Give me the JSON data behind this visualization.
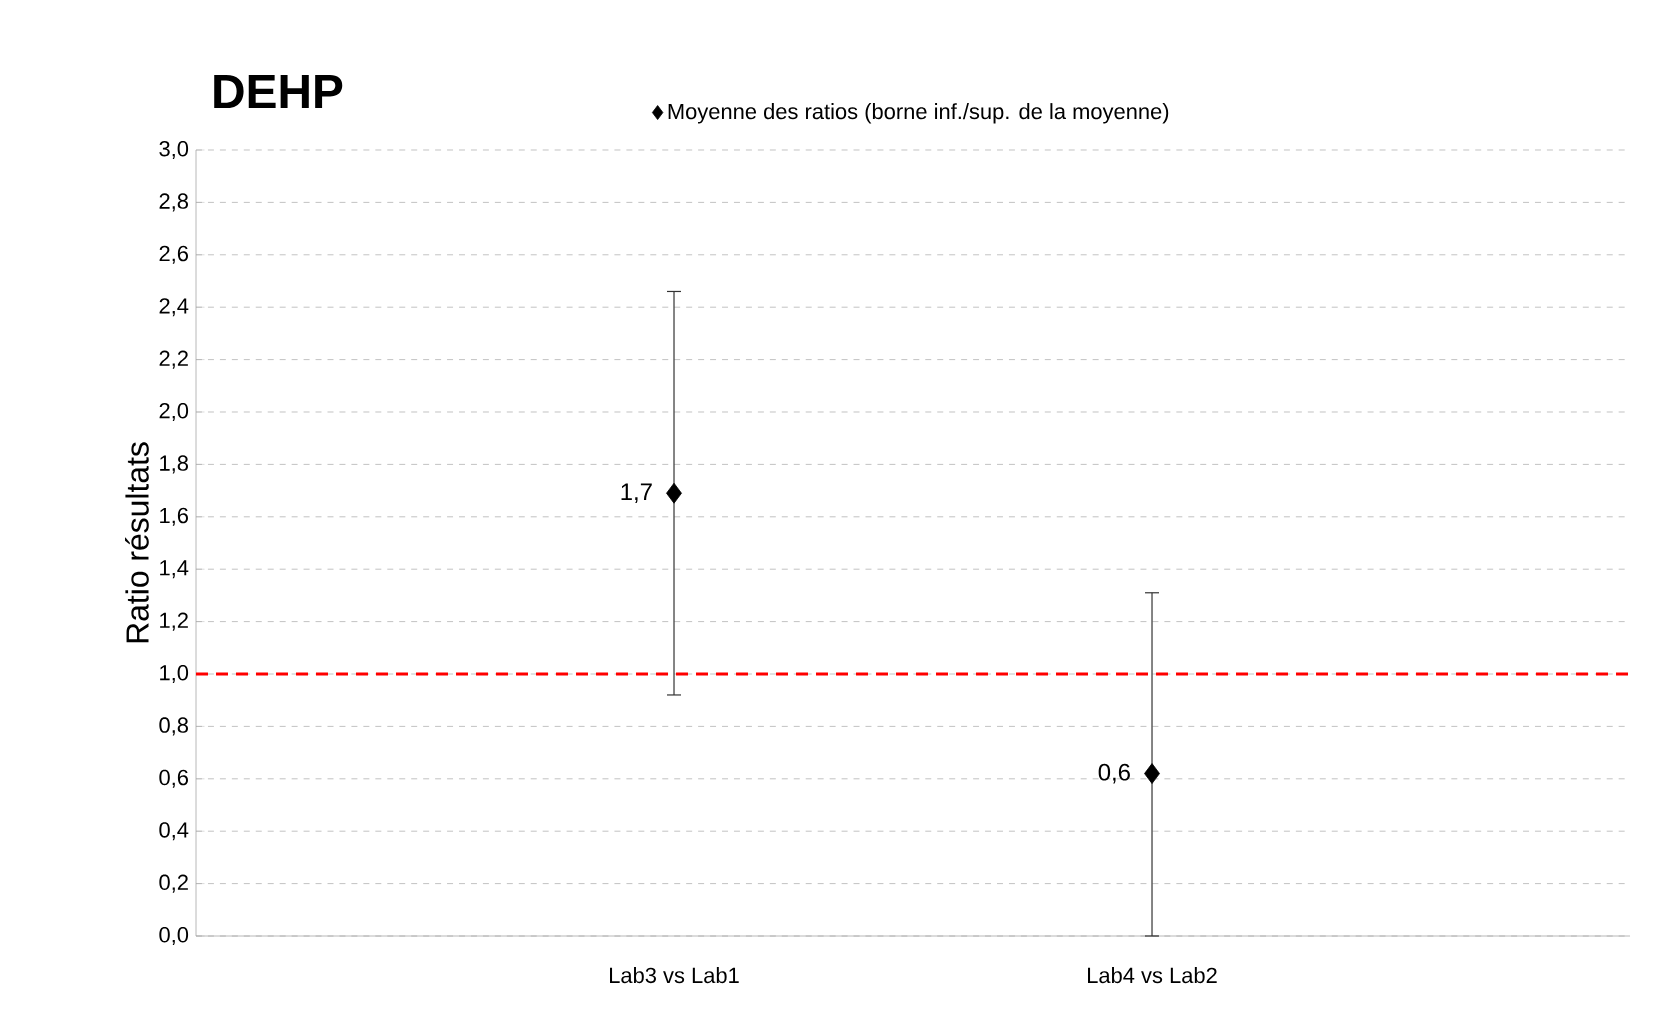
{
  "chart_data": {
    "type": "scatter",
    "title": "DEHP",
    "ylabel": "Ratio résultats",
    "categories": [
      "Lab3 vs Lab1",
      "Lab4 vs Lab2"
    ],
    "series": [
      {
        "name": "Moyenne des ratios (borne inf./sup. de la moyenne)",
        "color": "#000000",
        "values": [
          1.69,
          0.62
        ],
        "errors": [
          [
            0.92,
            2.46
          ],
          [
            0.0,
            1.31
          ]
        ],
        "value_labels": [
          "1,7",
          "0,6"
        ]
      }
    ],
    "marker": "diamond",
    "ylim": [
      0,
      3
    ],
    "yticks": [
      {
        "value": 0,
        "label": "0,0"
      },
      {
        "value": 0.2,
        "label": "0,2"
      },
      {
        "value": 0.4,
        "label": "0,4"
      },
      {
        "value": 0.6,
        "label": "0,6"
      },
      {
        "value": 0.8,
        "label": "0,8"
      },
      {
        "value": 1.0,
        "label": "1,0"
      },
      {
        "value": 1.2,
        "label": "1,2"
      },
      {
        "value": 1.4,
        "label": "1,4"
      },
      {
        "value": 1.6,
        "label": "1,6"
      },
      {
        "value": 1.8,
        "label": "1,8"
      },
      {
        "value": 2.0,
        "label": "2,0"
      },
      {
        "value": 2.2,
        "label": "2,2"
      },
      {
        "value": 2.4,
        "label": "2,4"
      },
      {
        "value": 2.6,
        "label": "2,6"
      },
      {
        "value": 2.8,
        "label": "2,8"
      },
      {
        "value": 3.0,
        "label": "3,0"
      }
    ],
    "grid": "y",
    "legend": "top",
    "ref_lines": [
      {
        "axis": "y",
        "value": 1.0,
        "color": "#ff0000",
        "line_style": "dashed"
      }
    ]
  }
}
